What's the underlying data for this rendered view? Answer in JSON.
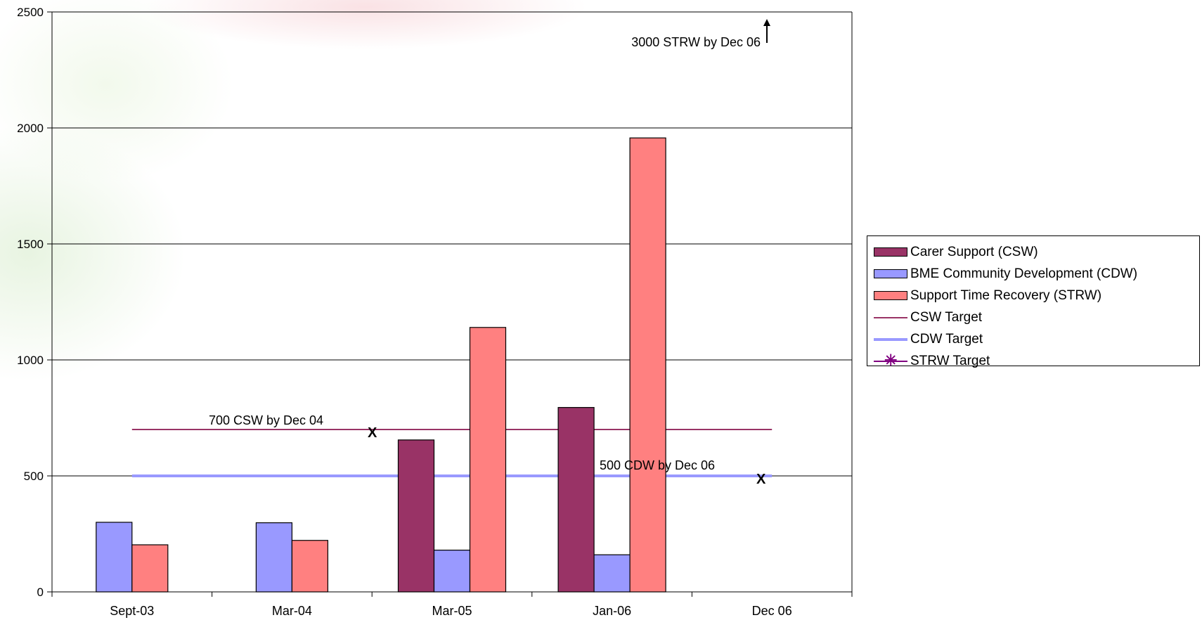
{
  "chart_data": {
    "type": "bar",
    "categories": [
      "Sept-03",
      "Mar-04",
      "Mar-05",
      "Jan-06",
      "Dec 06"
    ],
    "ylim": [
      0,
      2500
    ],
    "yticks": [
      0,
      500,
      1000,
      1500,
      2000,
      2500
    ],
    "grid": true,
    "legend_position": "right",
    "series": [
      {
        "name": "Carer Support (CSW)",
        "color": "#993366",
        "values": [
          null,
          null,
          655,
          795,
          null
        ]
      },
      {
        "name": "BME Community Development (CDW)",
        "color": "#9999ff",
        "values": [
          300,
          298,
          180,
          160,
          null
        ]
      },
      {
        "name": "Support Time Recovery (STRW)",
        "color": "#ff8080",
        "values": [
          203,
          222,
          1140,
          1957,
          null
        ]
      }
    ],
    "target_lines": [
      {
        "name": "CSW Target",
        "color": "#993366",
        "value": 700,
        "style": "thin",
        "marker": "none"
      },
      {
        "name": "CDW Target",
        "color": "#9999ff",
        "value": 500,
        "style": "thick",
        "marker": "none"
      },
      {
        "name": "STRW Target",
        "color": "#800080",
        "style": "thin",
        "marker": "asterisk"
      }
    ],
    "annotations": [
      {
        "text": "700 CSW by Dec 04"
      },
      {
        "text": "500 CDW by Dec 06"
      },
      {
        "text": "3000 STRW by Dec 06",
        "arrow": "up"
      }
    ],
    "markers": [
      "X",
      "X"
    ]
  }
}
